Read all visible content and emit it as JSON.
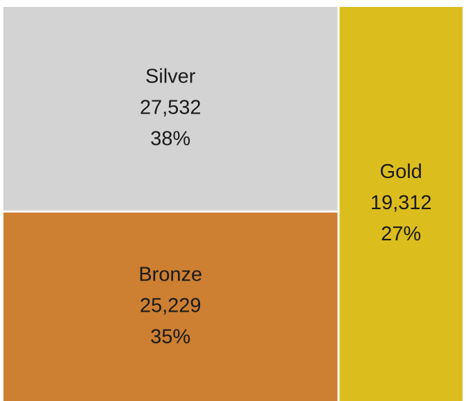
{
  "chart_data": {
    "type": "treemap",
    "categories": [
      "Silver",
      "Bronze",
      "Gold"
    ],
    "values": [
      27532,
      25229,
      19312
    ],
    "value_labels": [
      "27,532",
      "25,229",
      "19,312"
    ],
    "percents": [
      38,
      35,
      27
    ],
    "percent_labels": [
      "38%",
      "35%",
      "27%"
    ],
    "colors": [
      "#d3d3d3",
      "#cd7f32",
      "#dcbd1e"
    ]
  }
}
